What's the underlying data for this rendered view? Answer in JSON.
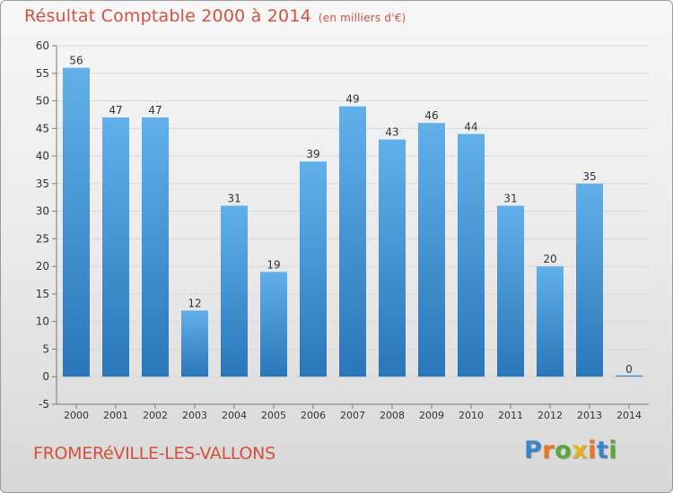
{
  "title": "Résultat Comptable 2000 à 2014",
  "unit_label": "(en milliers d'€)",
  "commune": "FROMERéVILLE-LES-VALLONS",
  "logo": {
    "text": "Proxiti",
    "letters": [
      "P",
      "r",
      "o",
      "x",
      "i",
      "t",
      "i"
    ]
  },
  "colors": {
    "accent": "#d4513f",
    "bar_top": "#62b0ea",
    "bar_bottom": "#2a76b8"
  },
  "chart_data": {
    "type": "bar",
    "title": "Résultat Comptable 2000 à 2014",
    "xlabel": "",
    "ylabel": "",
    "categories": [
      "2000",
      "2001",
      "2002",
      "2003",
      "2004",
      "2005",
      "2006",
      "2007",
      "2008",
      "2009",
      "2010",
      "2011",
      "2012",
      "2013",
      "2014"
    ],
    "values": [
      56,
      47,
      47,
      12,
      31,
      19,
      39,
      49,
      43,
      46,
      44,
      31,
      20,
      35,
      0
    ],
    "ylim": [
      -5,
      60
    ],
    "yticks": [
      -5,
      0,
      5,
      10,
      15,
      20,
      25,
      30,
      35,
      40,
      45,
      50,
      55,
      60
    ],
    "grid": true
  }
}
